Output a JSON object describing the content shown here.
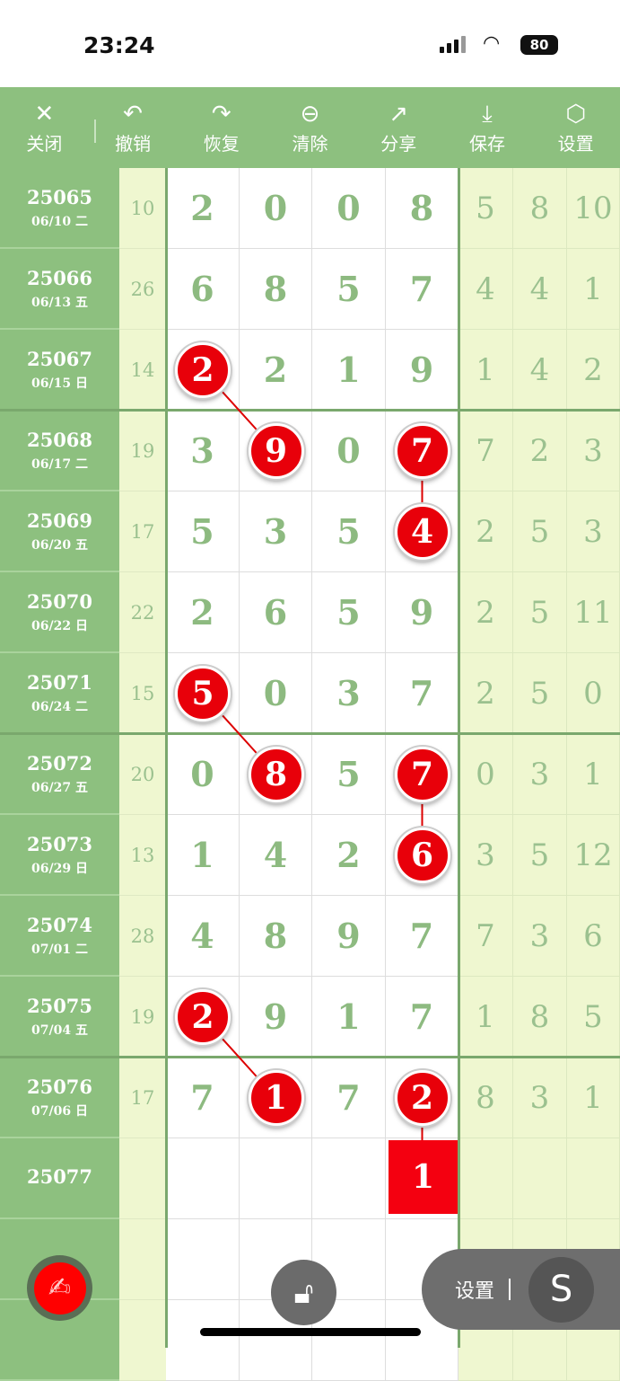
{
  "status": {
    "time": "23:24",
    "battery": "80"
  },
  "toolbar": [
    {
      "label": "关闭",
      "icon": "close-icon",
      "glyph": "✕"
    },
    {
      "label": "撤销",
      "icon": "undo-icon",
      "glyph": "↶"
    },
    {
      "label": "恢复",
      "icon": "redo-icon",
      "glyph": "↷"
    },
    {
      "label": "清除",
      "icon": "clear-icon",
      "glyph": "⊖"
    },
    {
      "label": "分享",
      "icon": "share-icon",
      "glyph": "↗"
    },
    {
      "label": "保存",
      "icon": "download-icon",
      "glyph": "⤓"
    },
    {
      "label": "设置",
      "icon": "settings-icon",
      "glyph": "⬡"
    }
  ],
  "rows": [
    {
      "issue": "25065",
      "date": "06/10 二",
      "sum": "10",
      "digits": [
        "2",
        "0",
        "0",
        "8"
      ],
      "extra": [
        "5",
        "8",
        "10"
      ]
    },
    {
      "issue": "25066",
      "date": "06/13 五",
      "sum": "26",
      "digits": [
        "6",
        "8",
        "5",
        "7"
      ],
      "extra": [
        "4",
        "4",
        "1"
      ]
    },
    {
      "issue": "25067",
      "date": "06/15 日",
      "sum": "14",
      "digits": [
        "2",
        "2",
        "1",
        "9"
      ],
      "extra": [
        "1",
        "4",
        "2"
      ]
    },
    {
      "issue": "25068",
      "date": "06/17 二",
      "sum": "19",
      "digits": [
        "3",
        "9",
        "0",
        "7"
      ],
      "extra": [
        "7",
        "2",
        "3"
      ]
    },
    {
      "issue": "25069",
      "date": "06/20 五",
      "sum": "17",
      "digits": [
        "5",
        "3",
        "5",
        "4"
      ],
      "extra": [
        "2",
        "5",
        "3"
      ]
    },
    {
      "issue": "25070",
      "date": "06/22 日",
      "sum": "22",
      "digits": [
        "2",
        "6",
        "5",
        "9"
      ],
      "extra": [
        "2",
        "5",
        "11"
      ]
    },
    {
      "issue": "25071",
      "date": "06/24 二",
      "sum": "15",
      "digits": [
        "5",
        "0",
        "3",
        "7"
      ],
      "extra": [
        "2",
        "5",
        "0"
      ]
    },
    {
      "issue": "25072",
      "date": "06/27 五",
      "sum": "20",
      "digits": [
        "0",
        "8",
        "5",
        "7"
      ],
      "extra": [
        "0",
        "3",
        "1"
      ]
    },
    {
      "issue": "25073",
      "date": "06/29 日",
      "sum": "13",
      "digits": [
        "1",
        "4",
        "2",
        "6"
      ],
      "extra": [
        "3",
        "5",
        "12"
      ]
    },
    {
      "issue": "25074",
      "date": "07/01 二",
      "sum": "28",
      "digits": [
        "4",
        "8",
        "9",
        "7"
      ],
      "extra": [
        "7",
        "3",
        "6"
      ]
    },
    {
      "issue": "25075",
      "date": "07/04 五",
      "sum": "19",
      "digits": [
        "2",
        "9",
        "1",
        "7"
      ],
      "extra": [
        "1",
        "8",
        "5"
      ]
    },
    {
      "issue": "25076",
      "date": "07/06 日",
      "sum": "17",
      "digits": [
        "7",
        "1",
        "7",
        "2"
      ],
      "extra": [
        "8",
        "3",
        "1"
      ]
    },
    {
      "issue": "25077",
      "date": "",
      "sum": "",
      "digits": [
        "",
        "",
        "",
        "1"
      ],
      "extra": [
        "",
        "",
        ""
      ]
    }
  ],
  "marks": [
    {
      "row": 2,
      "col": 0
    },
    {
      "row": 3,
      "col": 1
    },
    {
      "row": 3,
      "col": 3
    },
    {
      "row": 4,
      "col": 3
    },
    {
      "row": 6,
      "col": 0
    },
    {
      "row": 7,
      "col": 1
    },
    {
      "row": 7,
      "col": 3
    },
    {
      "row": 8,
      "col": 3
    },
    {
      "row": 10,
      "col": 0
    },
    {
      "row": 11,
      "col": 1
    },
    {
      "row": 11,
      "col": 3
    },
    {
      "row": 12,
      "col": 3,
      "shape": "square"
    }
  ],
  "links": [
    [
      0,
      1
    ],
    [
      2,
      3
    ],
    [
      4,
      5
    ],
    [
      6,
      7
    ],
    [
      8,
      9
    ],
    [
      10,
      11
    ],
    [
      11,
      11
    ],
    [
      10,
      11
    ]
  ],
  "bottom": {
    "settings_label": "设置",
    "pen_icon": "signature-pen-icon",
    "lock_icon": "lock-icon",
    "s_icon": "s-switch-icon"
  },
  "colors": {
    "green": "#8dc07f",
    "red": "#e8000a",
    "pale": "#eff7d0"
  }
}
